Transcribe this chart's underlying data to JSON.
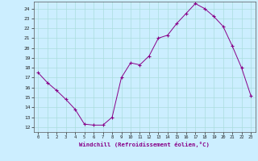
{
  "x": [
    0,
    1,
    2,
    3,
    4,
    5,
    6,
    7,
    8,
    9,
    10,
    11,
    12,
    13,
    14,
    15,
    16,
    17,
    18,
    19,
    20,
    21,
    22,
    23
  ],
  "y": [
    17.5,
    16.5,
    15.7,
    14.8,
    13.8,
    12.3,
    12.2,
    12.2,
    13.0,
    17.0,
    18.5,
    18.3,
    19.2,
    21.0,
    21.3,
    22.5,
    23.5,
    24.5,
    24.0,
    23.2,
    22.2,
    20.2,
    18.0,
    15.2
  ],
  "line_color": "#880088",
  "marker": "+",
  "marker_color": "#880088",
  "bg_color": "#cceeff",
  "grid_color": "#aadddd",
  "xlabel": "Windchill (Refroidissement éolien,°C)",
  "xlabel_color": "#880088",
  "ylabel_values": [
    12,
    13,
    14,
    15,
    16,
    17,
    18,
    19,
    20,
    21,
    22,
    23,
    24
  ],
  "xlim": [
    -0.5,
    23.5
  ],
  "ylim": [
    11.5,
    24.7
  ],
  "xticks": [
    0,
    1,
    2,
    3,
    4,
    5,
    6,
    7,
    8,
    9,
    10,
    11,
    12,
    13,
    14,
    15,
    16,
    17,
    18,
    19,
    20,
    21,
    22,
    23
  ]
}
